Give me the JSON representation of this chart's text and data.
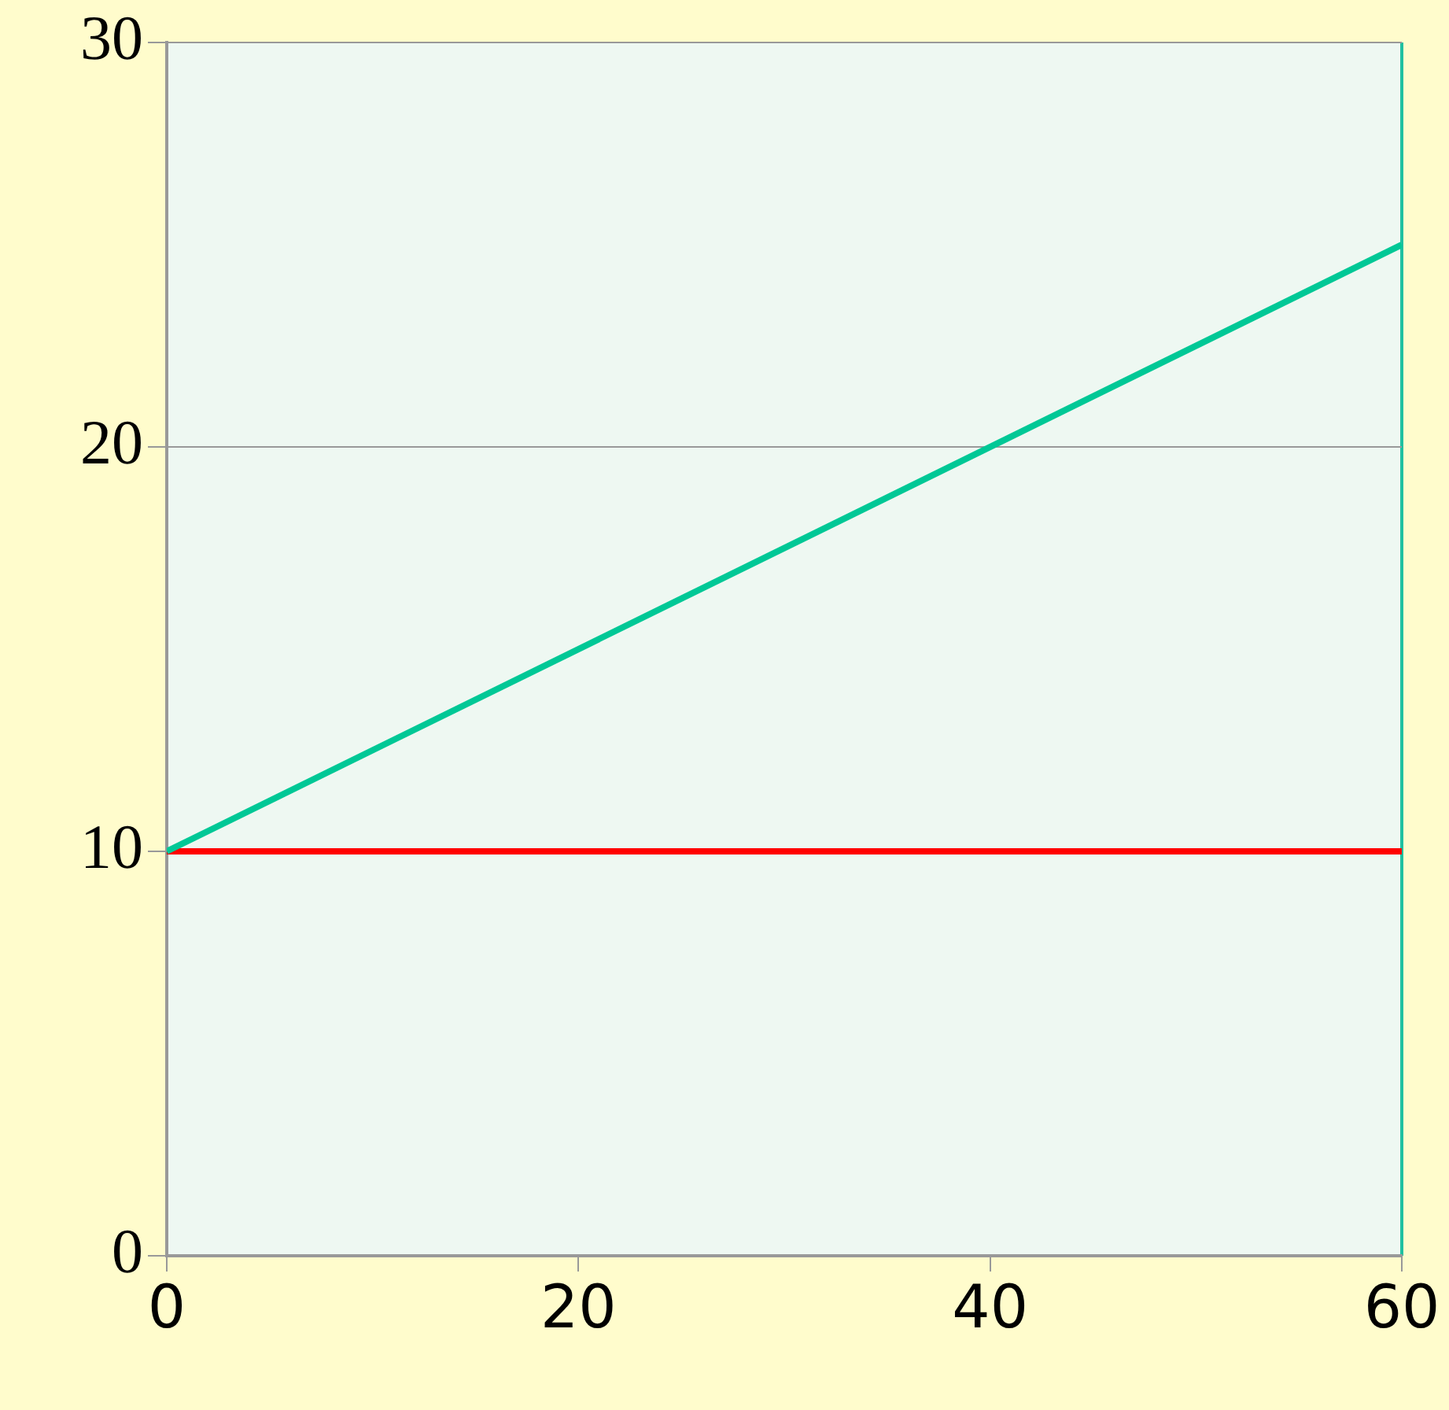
{
  "chart_data": {
    "type": "line",
    "x": [
      0,
      60
    ],
    "series": [
      {
        "color": "#00c896",
        "values": [
          10,
          25
        ]
      },
      {
        "color": "#ff0000",
        "values": [
          10,
          10
        ]
      }
    ],
    "xlim": [
      0,
      60
    ],
    "xticks": [
      0,
      20,
      40,
      60
    ],
    "ylim": [
      0,
      30
    ],
    "yticks": [
      0,
      10,
      20,
      30
    ],
    "grid": "y",
    "legend": false,
    "marker": "none",
    "line_style": "solid"
  }
}
